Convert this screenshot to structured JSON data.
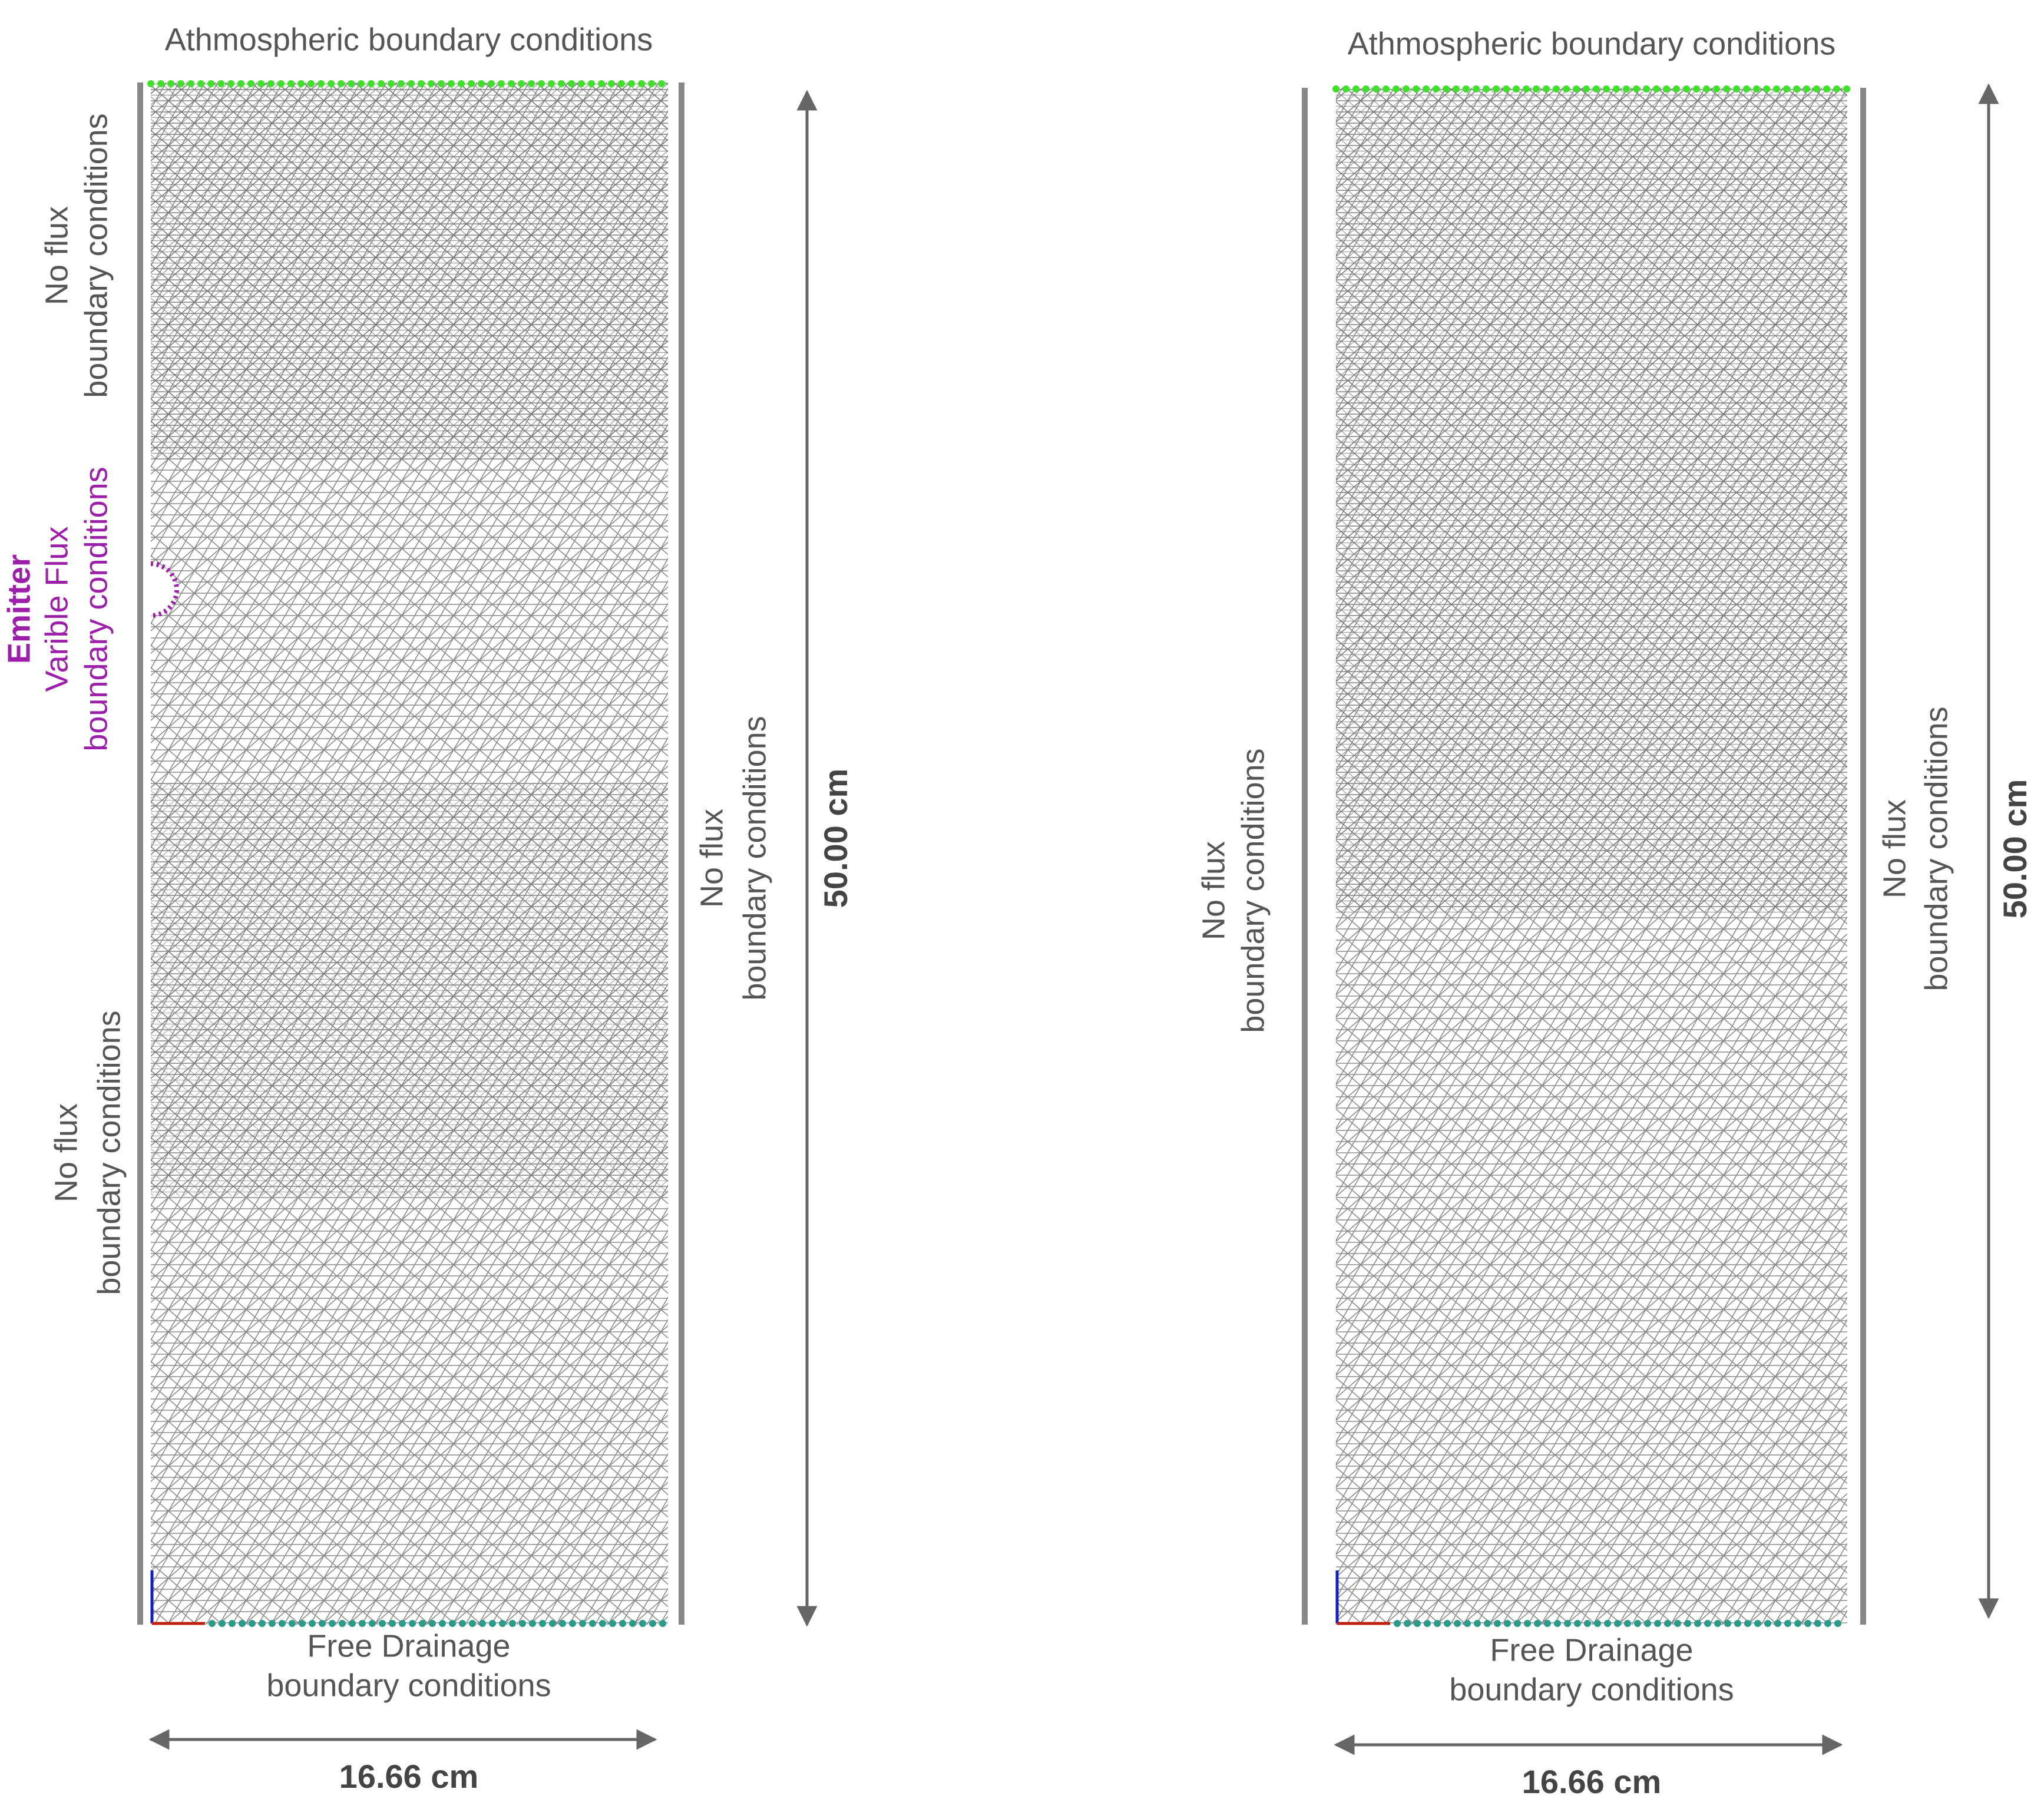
{
  "panels": [
    {
      "top_label": "Athmospheric boundary conditions",
      "left_upper": [
        "No flux",
        "boundary conditions"
      ],
      "emitter": [
        "Emitter",
        "Varible Flux",
        "boundary conditions"
      ],
      "left_lower": [
        "No flux",
        "boundary conditions"
      ],
      "right_side": [
        "No flux",
        "boundary conditions"
      ],
      "bottom_label": [
        "Free Drainage",
        "boundary conditions"
      ],
      "width_label": "16.66 cm",
      "height_label": "50.00 cm"
    },
    {
      "top_label": "Athmospheric boundary conditions",
      "left_side": [
        "No flux",
        "boundary conditions"
      ],
      "right_side": [
        "No flux",
        "boundary conditions"
      ],
      "bottom_label": [
        "Free Drainage",
        "boundary conditions"
      ],
      "width_label": "16.66 cm",
      "height_label": "50.00 cm"
    }
  ]
}
